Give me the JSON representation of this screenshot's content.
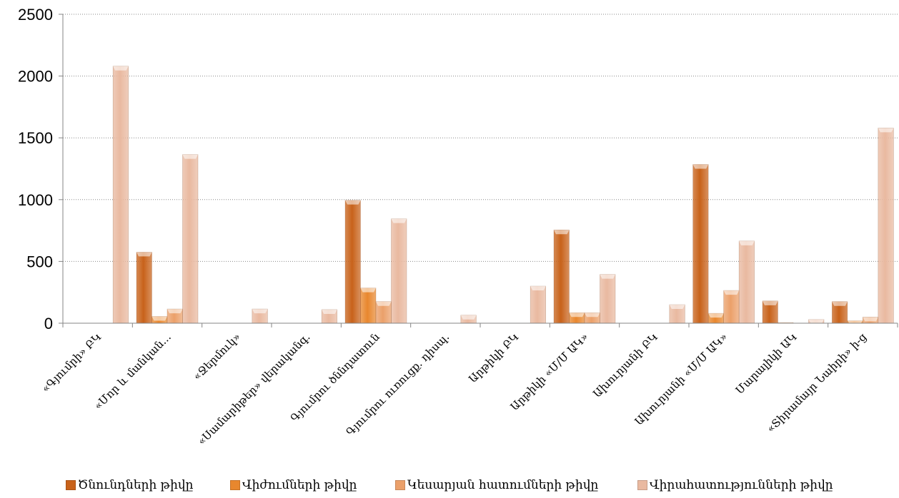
{
  "chart_data": {
    "type": "bar",
    "title": "",
    "xlabel": "",
    "ylabel": "",
    "ylim": [
      0,
      2500
    ],
    "yticks": [
      0,
      500,
      1000,
      1500,
      2000,
      2500
    ],
    "grid": true,
    "legend_position": "bottom",
    "categories": [
      "«Գյումրի» ԲԿ",
      "«Մոր և մանկան...",
      "«Ջերմուկ»",
      "«Սամարիթեր» վերականգ.",
      "Գյումրու ծննդատուն",
      "Գյումրու ուռուցք. դիսպ.",
      "Արթիկի ԲԿ",
      "Արթիկի «Մ/Մ ԱԿ»",
      "Ախուրյանի ԲԿ",
      "Ախուրյանի «Մ/Մ ԱԿ»",
      "Մարալիկի ԱԿ",
      "«Տիրամայր Նաիրի» ի-ց"
    ],
    "series": [
      {
        "name": "Ծնունդների թիվը",
        "color": "#c8621a",
        "values": [
          0,
          575,
          0,
          0,
          995,
          0,
          0,
          755,
          0,
          1285,
          180,
          175
        ]
      },
      {
        "name": "Վիժումների թիվը",
        "color": "#e8872e",
        "values": [
          0,
          55,
          0,
          0,
          285,
          0,
          0,
          85,
          0,
          80,
          5,
          20
        ]
      },
      {
        "name": "Կեսարյան հատումների թիվը",
        "color": "#eba06a",
        "values": [
          0,
          115,
          0,
          0,
          175,
          0,
          0,
          85,
          0,
          265,
          0,
          50
        ]
      },
      {
        "name": "Վիրահատությունների թիվը",
        "color": "#e9b9a0",
        "values": [
          2080,
          1365,
          115,
          110,
          845,
          65,
          300,
          395,
          150,
          665,
          30,
          1580
        ]
      }
    ]
  }
}
